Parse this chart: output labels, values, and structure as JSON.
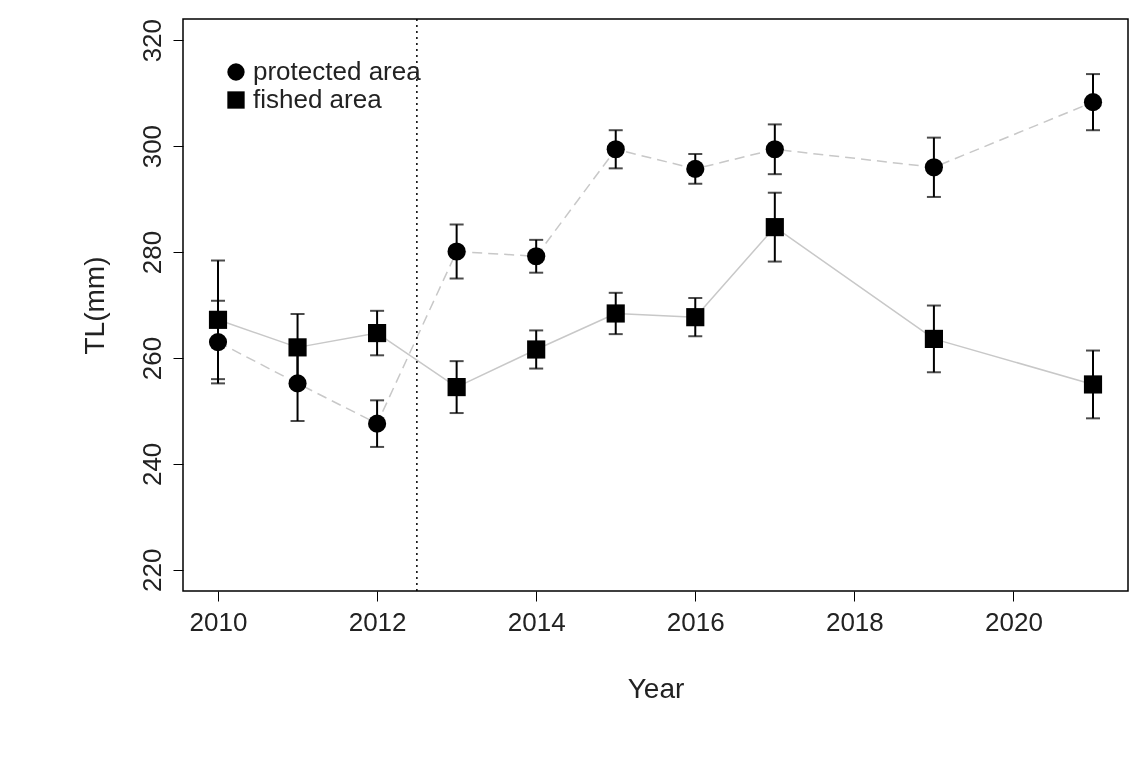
{
  "chart_data": {
    "type": "scatter",
    "xlabel": "Year",
    "ylabel": "TL(mm)",
    "xlim": [
      2009.56,
      2021.44
    ],
    "xticks": [
      2010,
      2012,
      2014,
      2016,
      2018,
      2020
    ],
    "ylim": [
      216,
      324
    ],
    "yticks": [
      220,
      240,
      260,
      280,
      300,
      320
    ],
    "grid": false,
    "legend": "top left",
    "ref_lines": [
      {
        "axis": "x",
        "value": 2012.5,
        "label": null,
        "color": "#000000",
        "line_style": "dotted"
      }
    ],
    "series": [
      {
        "name": "protected area",
        "type": "line",
        "color": "#c8c8c8",
        "colors": [
          "#000000",
          "#000000",
          "#000000",
          "#000000",
          "#000000",
          "#000000",
          "#000000",
          "#000000",
          "#000000",
          "#000000"
        ],
        "marker": "circle",
        "line_style": "dashed",
        "x": [
          2010,
          2011,
          2012,
          2013,
          2014,
          2015,
          2016,
          2017,
          2019,
          2021
        ],
        "values": [
          263,
          255.2,
          247.6,
          280.1,
          279.2,
          299.4,
          295.7,
          299.4,
          296.0,
          308.3
        ],
        "errors": [
          7.8,
          7.1,
          4.4,
          5.1,
          3.1,
          3.6,
          2.8,
          4.7,
          5.6,
          5.3
        ]
      },
      {
        "name": "fished area",
        "type": "line",
        "color": "#c8c8c8",
        "colors": [
          "#000000",
          "#000000",
          "#000000",
          "#000000",
          "#000000",
          "#000000",
          "#000000",
          "#000000",
          "#000000",
          "#000000"
        ],
        "marker": "square",
        "line_style": "solid",
        "x": [
          2010,
          2011,
          2012,
          2013,
          2014,
          2015,
          2016,
          2017,
          2019,
          2021
        ],
        "values": [
          267.2,
          262.0,
          264.7,
          254.5,
          261.6,
          268.4,
          267.7,
          284.7,
          263.6,
          255.0
        ],
        "errors": [
          11.2,
          6.3,
          4.2,
          4.9,
          3.6,
          3.9,
          3.6,
          6.5,
          6.3,
          6.4
        ]
      }
    ]
  }
}
